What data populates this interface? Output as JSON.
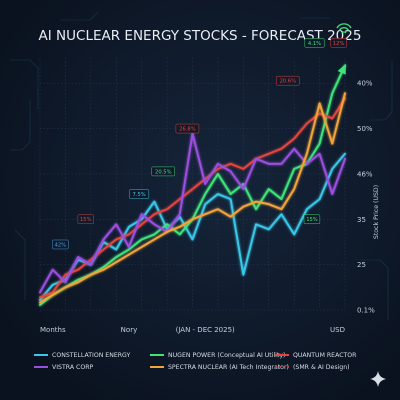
{
  "chart_data": {
    "type": "line",
    "title": "AI NUCLEAR ENERGY STOCKS - FORECAST 2025",
    "ylabel": "Stock Price (USD)",
    "x_tick_labels": [
      "Months",
      "Nory",
      "(JAN - DEC 2025)",
      "USD"
    ],
    "y_tick_labels": [
      "40%",
      "50%",
      "46%",
      "35",
      "25",
      "0.1%"
    ],
    "x": [
      0,
      1,
      2,
      3,
      4,
      5,
      6,
      7,
      8,
      9,
      10,
      11,
      12,
      13,
      14,
      15,
      16,
      17,
      18,
      19,
      20,
      21,
      22,
      23,
      24
    ],
    "xlim": [
      0,
      24
    ],
    "ylim": [
      0,
      100
    ],
    "series": [
      {
        "name": "CONSTELLATION ENERGY",
        "color": "#39c7e8",
        "values": [
          4,
          10,
          12,
          20,
          18,
          27,
          24,
          33,
          36,
          43,
          32,
          37,
          28,
          42,
          46,
          44,
          14,
          34,
          32,
          38,
          30,
          40,
          44,
          56,
          62
        ]
      },
      {
        "name": "NUGEN POWER (Conceptual AI Utility)",
        "color": "#3ee37a",
        "values": [
          2,
          6,
          9,
          12,
          14,
          17,
          21,
          24,
          28,
          30,
          34,
          30,
          36,
          46,
          54,
          46,
          50,
          40,
          48,
          44,
          56,
          58,
          66,
          86,
          97
        ]
      },
      {
        "name": "QUANTUM REACTOR",
        "color": "#e3443d",
        "values": [
          5,
          7,
          14,
          16,
          20,
          24,
          28,
          30,
          34,
          38,
          40,
          44,
          48,
          52,
          56,
          58,
          56,
          60,
          62,
          64,
          68,
          74,
          78,
          76,
          84
        ]
      },
      {
        "name": "VISTRA CORP",
        "color": "#9b4fe0",
        "values": [
          7,
          16,
          11,
          21,
          18,
          28,
          34,
          25,
          38,
          34,
          31,
          38,
          70,
          50,
          58,
          55,
          48,
          60,
          58,
          58,
          64,
          58,
          62,
          46,
          60
        ]
      },
      {
        "name": "SPECTRA NUCLEAR (AI Tech Integrator)",
        "color": "#f2a33a",
        "values": [
          3,
          6,
          9,
          11,
          14,
          16,
          19,
          22,
          25,
          28,
          31,
          33,
          36,
          38,
          40,
          37,
          41,
          43,
          42,
          40,
          48,
          62,
          82,
          66,
          86
        ]
      }
    ],
    "legend_extra": "(SMR & AI Design)",
    "annotations": [
      {
        "text": "42%",
        "x": 1.6,
        "y": 26,
        "color": "#4ea0e0"
      },
      {
        "text": "15%",
        "x": 3.6,
        "y": 36,
        "color": "#d9473c"
      },
      {
        "text": "7.5%",
        "x": 7.8,
        "y": 46,
        "color": "#3ec7e8"
      },
      {
        "text": "20.5%",
        "x": 9.7,
        "y": 55,
        "color": "#3ee37a"
      },
      {
        "text": "26.8%",
        "x": 11.6,
        "y": 72,
        "color": "#e3443d"
      },
      {
        "text": "20.6%",
        "x": 19.5,
        "y": 91,
        "color": "#e3443d"
      },
      {
        "text": "4.1%",
        "x": 21.6,
        "y": 106,
        "color": "#3ee37a"
      },
      {
        "text": "12%",
        "x": 23.5,
        "y": 106,
        "color": "#e3443d"
      },
      {
        "text": "15%",
        "x": 21.4,
        "y": 36,
        "color": "#3ee37a"
      }
    ],
    "grid": true,
    "legend_position": "bottom"
  }
}
